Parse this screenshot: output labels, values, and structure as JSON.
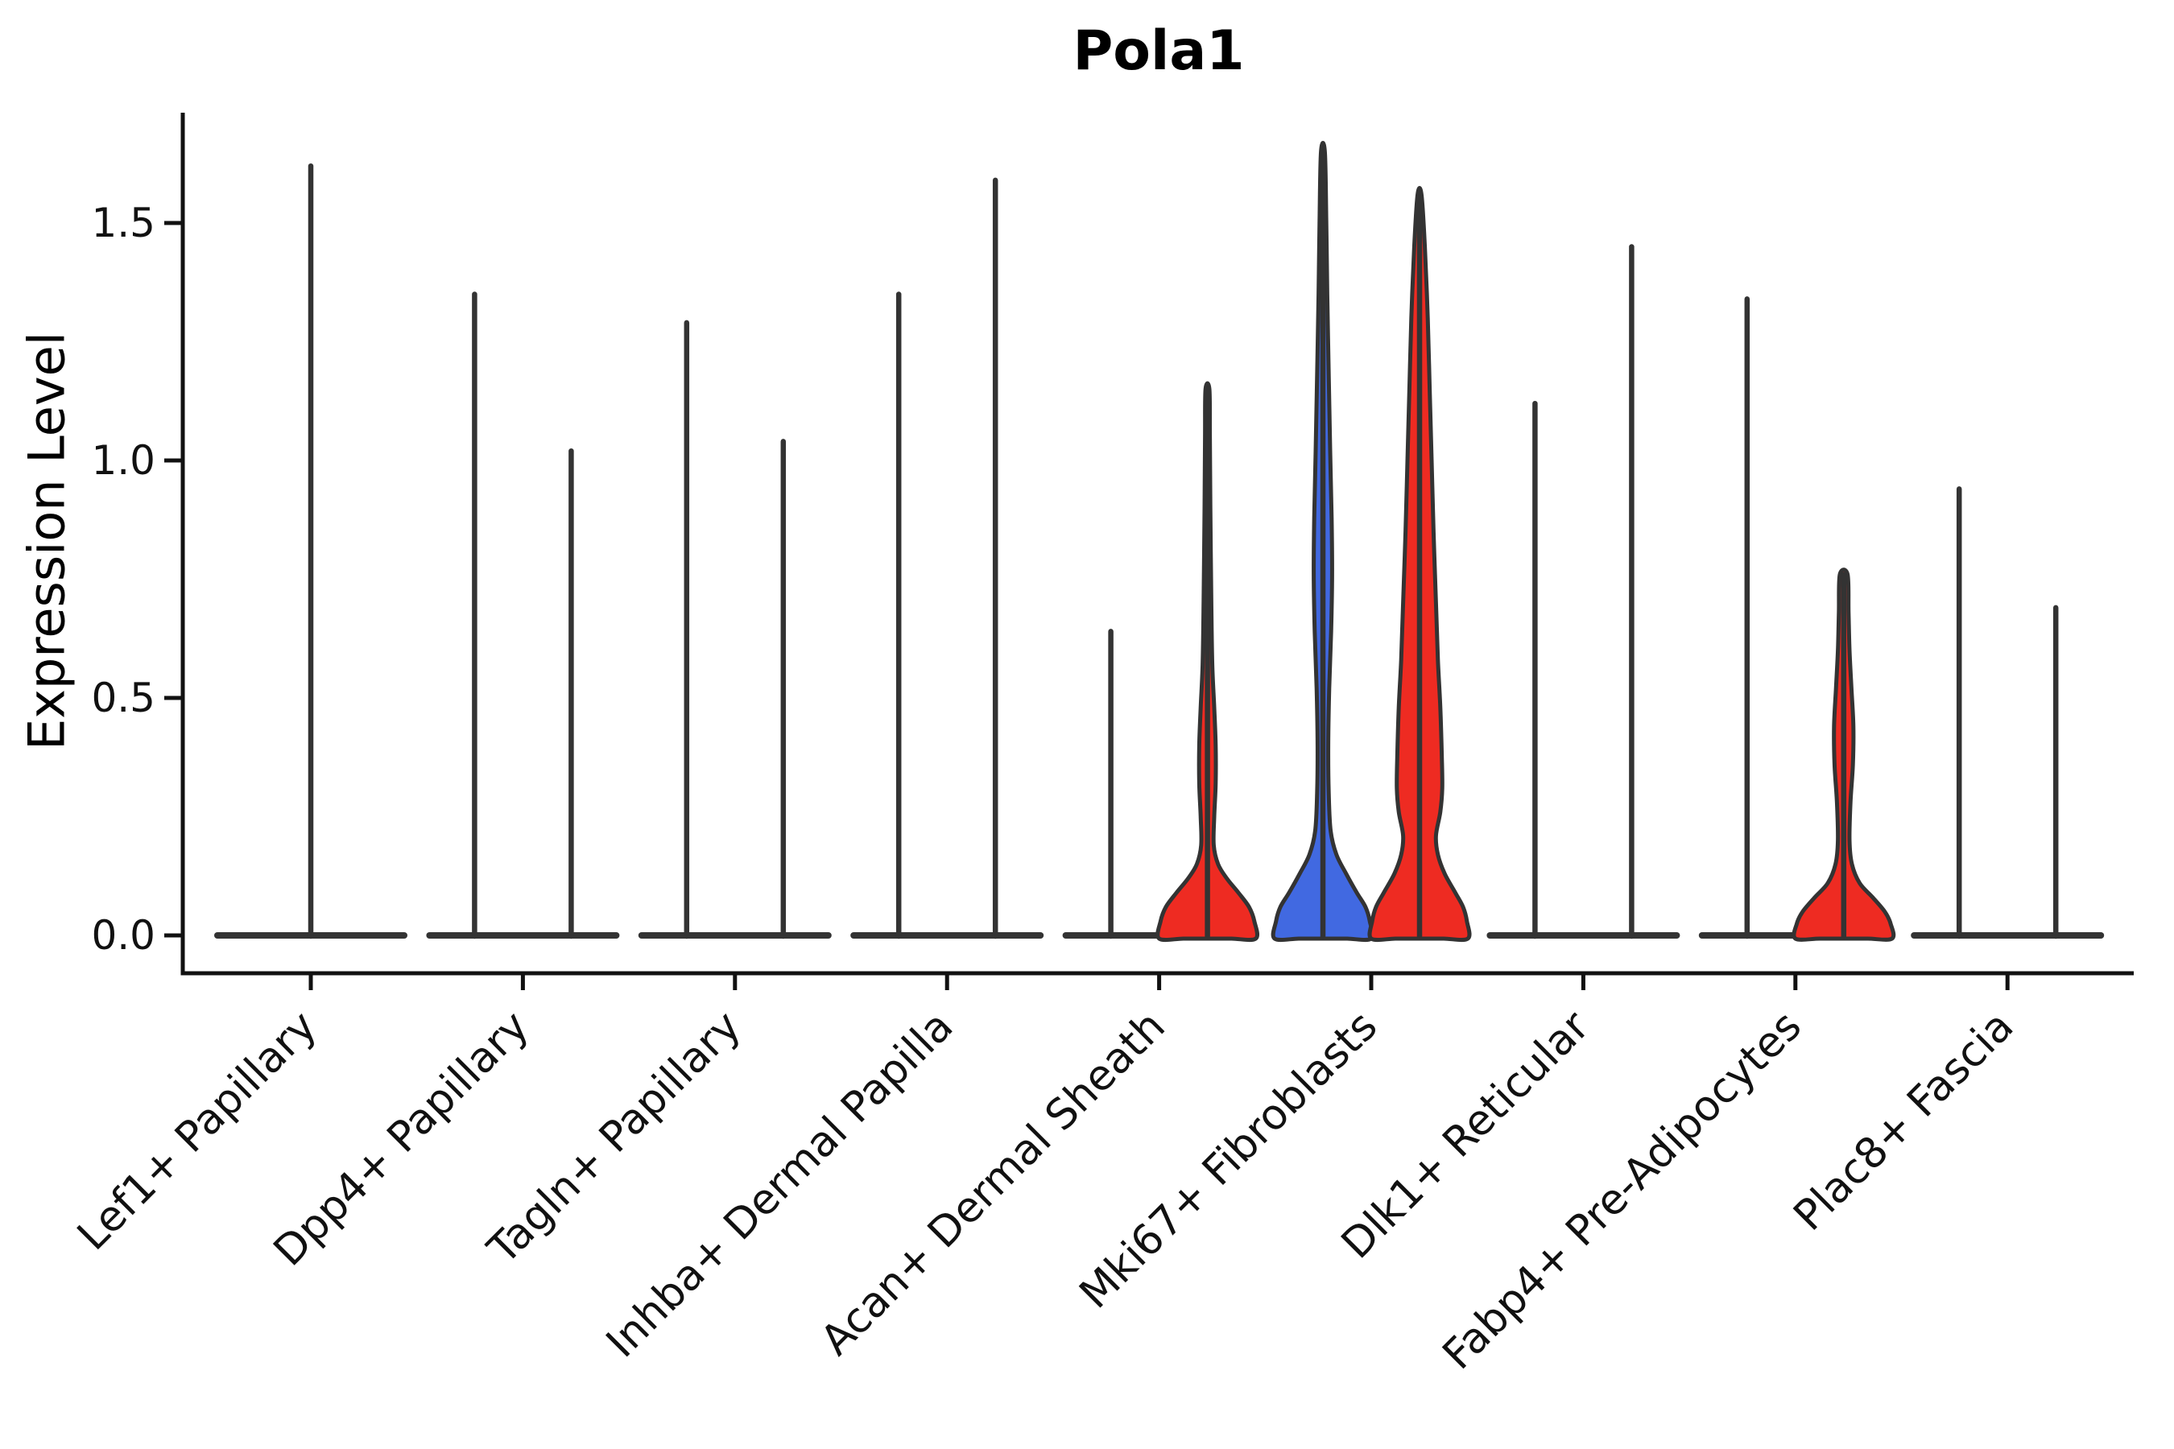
{
  "chart_data": {
    "type": "violin",
    "title": "Pola1",
    "ylabel": "Expression Level",
    "xlabel": "",
    "ytick_labels": [
      "0.0",
      "0.5",
      "1.0",
      "1.5"
    ],
    "yticks": [
      0.0,
      0.5,
      1.0,
      1.5
    ],
    "ylim": [
      0.0,
      1.73
    ],
    "grid": "off",
    "legend": "none",
    "palette": {
      "red": "#ee2b22",
      "blue": "#4169e1",
      "outline": "#333333",
      "axis": "#111111",
      "text": "#111111"
    },
    "categories": [
      {
        "label": "Lef1+ Papillary",
        "violins": [
          {
            "pos": "single",
            "kind": "spike",
            "fill": null,
            "max": 1.62
          }
        ]
      },
      {
        "label": "Dpp4+ Papillary",
        "violins": [
          {
            "pos": "a",
            "kind": "spike",
            "fill": null,
            "max": 1.35
          },
          {
            "pos": "b",
            "kind": "spike",
            "fill": null,
            "max": 1.02
          }
        ]
      },
      {
        "label": "Tagln+ Papillary",
        "violins": [
          {
            "pos": "a",
            "kind": "spike",
            "fill": null,
            "max": 1.29
          },
          {
            "pos": "b",
            "kind": "spike",
            "fill": null,
            "max": 1.04
          }
        ]
      },
      {
        "label": "Inhba+ Dermal Papilla",
        "violins": [
          {
            "pos": "a",
            "kind": "spike",
            "fill": null,
            "max": 1.35
          },
          {
            "pos": "b",
            "kind": "spike",
            "fill": null,
            "max": 1.59
          }
        ]
      },
      {
        "label": "Acan+ Dermal Sheath",
        "violins": [
          {
            "pos": "a",
            "kind": "spike",
            "fill": null,
            "max": 0.64
          },
          {
            "pos": "b",
            "kind": "density",
            "fill": "red",
            "max": 1.15,
            "profile": [
              [
                0,
                1
              ],
              [
                0.03,
                0.97
              ],
              [
                0.06,
                0.86
              ],
              [
                0.09,
                0.64
              ],
              [
                0.12,
                0.4
              ],
              [
                0.15,
                0.22
              ],
              [
                0.19,
                0.13
              ],
              [
                0.25,
                0.14
              ],
              [
                0.32,
                0.17
              ],
              [
                0.4,
                0.17
              ],
              [
                0.48,
                0.14
              ],
              [
                0.57,
                0.1
              ],
              [
                0.7,
                0.08
              ],
              [
                0.9,
                0.06
              ],
              [
                1.05,
                0.05
              ],
              [
                1.15,
                0.04
              ]
            ]
          }
        ]
      },
      {
        "label": "Mki67+ Fibroblasts",
        "violins": [
          {
            "pos": "a",
            "kind": "density",
            "fill": "blue",
            "max": 1.65,
            "profile": [
              [
                0,
                1
              ],
              [
                0.03,
                0.97
              ],
              [
                0.06,
                0.88
              ],
              [
                0.09,
                0.7
              ],
              [
                0.13,
                0.48
              ],
              [
                0.17,
                0.28
              ],
              [
                0.22,
                0.16
              ],
              [
                0.3,
                0.12
              ],
              [
                0.4,
                0.11
              ],
              [
                0.52,
                0.13
              ],
              [
                0.64,
                0.17
              ],
              [
                0.76,
                0.19
              ],
              [
                0.88,
                0.18
              ],
              [
                1.02,
                0.15
              ],
              [
                1.18,
                0.12
              ],
              [
                1.35,
                0.09
              ],
              [
                1.5,
                0.07
              ],
              [
                1.65,
                0.04
              ]
            ]
          },
          {
            "pos": "b",
            "kind": "density",
            "fill": "red",
            "max": 1.56,
            "profile": [
              [
                0,
                1
              ],
              [
                0.03,
                0.98
              ],
              [
                0.06,
                0.9
              ],
              [
                0.09,
                0.74
              ],
              [
                0.13,
                0.52
              ],
              [
                0.17,
                0.38
              ],
              [
                0.21,
                0.34
              ],
              [
                0.26,
                0.43
              ],
              [
                0.31,
                0.47
              ],
              [
                0.38,
                0.46
              ],
              [
                0.48,
                0.43
              ],
              [
                0.58,
                0.38
              ],
              [
                0.7,
                0.34
              ],
              [
                0.85,
                0.29
              ],
              [
                1.0,
                0.25
              ],
              [
                1.15,
                0.21
              ],
              [
                1.3,
                0.17
              ],
              [
                1.45,
                0.11
              ],
              [
                1.56,
                0.04
              ]
            ]
          }
        ]
      },
      {
        "label": "Dlk1+ Reticular",
        "violins": [
          {
            "pos": "a",
            "kind": "spike",
            "fill": null,
            "max": 1.12
          },
          {
            "pos": "b",
            "kind": "spike",
            "fill": null,
            "max": 1.45
          }
        ]
      },
      {
        "label": "Fabp4+ Pre-Adipocytes",
        "violins": [
          {
            "pos": "a",
            "kind": "spike",
            "fill": null,
            "max": 1.34
          },
          {
            "pos": "b",
            "kind": "density",
            "fill": "red",
            "max": 0.76,
            "profile": [
              [
                0,
                1
              ],
              [
                0.025,
                0.97
              ],
              [
                0.05,
                0.85
              ],
              [
                0.08,
                0.6
              ],
              [
                0.11,
                0.33
              ],
              [
                0.15,
                0.17
              ],
              [
                0.2,
                0.12
              ],
              [
                0.28,
                0.14
              ],
              [
                0.36,
                0.19
              ],
              [
                0.44,
                0.2
              ],
              [
                0.52,
                0.16
              ],
              [
                0.6,
                0.12
              ],
              [
                0.68,
                0.1
              ],
              [
                0.76,
                0.08
              ]
            ]
          }
        ]
      },
      {
        "label": "Plac8+ Fascia",
        "violins": [
          {
            "pos": "a",
            "kind": "spike",
            "fill": null,
            "max": 0.94
          },
          {
            "pos": "b",
            "kind": "spike",
            "fill": null,
            "max": 0.69
          }
        ]
      }
    ]
  }
}
